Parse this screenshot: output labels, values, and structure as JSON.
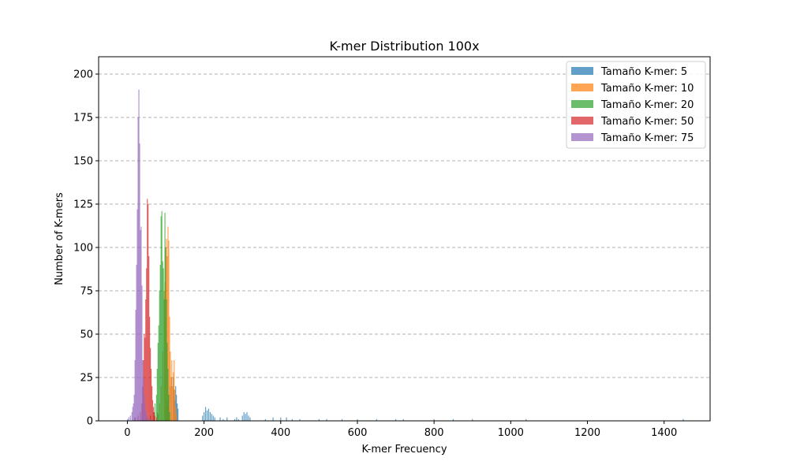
{
  "chart_data": {
    "type": "bar",
    "title": "K-mer Distribution 100x",
    "xlabel": "K-mer Frecuency",
    "ylabel": "Number of K-mers",
    "xlim": [
      -75,
      1520
    ],
    "ylim": [
      0,
      210
    ],
    "xticks": [
      0,
      200,
      400,
      600,
      800,
      1000,
      1200,
      1400
    ],
    "yticks": [
      0,
      25,
      50,
      75,
      100,
      125,
      150,
      175,
      200
    ],
    "grid": "y-dashed",
    "legend_position": "top-right",
    "series": [
      {
        "name": "Tamaño K-mer: 5",
        "color": "#1f77b4",
        "bars": [
          [
            1,
            1
          ],
          [
            19,
            2
          ],
          [
            40,
            2
          ],
          [
            60,
            3
          ],
          [
            80,
            4
          ],
          [
            100,
            8
          ],
          [
            104,
            12
          ],
          [
            108,
            15
          ],
          [
            112,
            20
          ],
          [
            116,
            25
          ],
          [
            120,
            25
          ],
          [
            122,
            18
          ],
          [
            124,
            12
          ],
          [
            126,
            20
          ],
          [
            128,
            15
          ],
          [
            130,
            10
          ],
          [
            132,
            7
          ],
          [
            196,
            3
          ],
          [
            200,
            5
          ],
          [
            204,
            8
          ],
          [
            208,
            6
          ],
          [
            212,
            7
          ],
          [
            216,
            5
          ],
          [
            220,
            4
          ],
          [
            224,
            3
          ],
          [
            228,
            2
          ],
          [
            242,
            2
          ],
          [
            250,
            1
          ],
          [
            260,
            2
          ],
          [
            280,
            1
          ],
          [
            285,
            2
          ],
          [
            290,
            1
          ],
          [
            300,
            3
          ],
          [
            304,
            5
          ],
          [
            308,
            4
          ],
          [
            312,
            5
          ],
          [
            316,
            3
          ],
          [
            320,
            2
          ],
          [
            360,
            1
          ],
          [
            380,
            2
          ],
          [
            400,
            2
          ],
          [
            415,
            2
          ],
          [
            430,
            1
          ],
          [
            450,
            1
          ],
          [
            500,
            1
          ],
          [
            520,
            1
          ],
          [
            560,
            1
          ],
          [
            600,
            1
          ],
          [
            650,
            1
          ],
          [
            700,
            1
          ],
          [
            720,
            1
          ],
          [
            800,
            1
          ],
          [
            850,
            1
          ],
          [
            900,
            1
          ],
          [
            1040,
            1
          ],
          [
            1450,
            1
          ]
        ]
      },
      {
        "name": "Tamaño K-mer: 10",
        "color": "#ff7f0e",
        "bars": [
          [
            60,
            2
          ],
          [
            70,
            3
          ],
          [
            78,
            5
          ],
          [
            84,
            10
          ],
          [
            88,
            20
          ],
          [
            92,
            40
          ],
          [
            96,
            75
          ],
          [
            98,
            80
          ],
          [
            100,
            100
          ],
          [
            102,
            105
          ],
          [
            104,
            95
          ],
          [
            106,
            112
          ],
          [
            108,
            104
          ],
          [
            110,
            60
          ],
          [
            112,
            40
          ],
          [
            114,
            25
          ],
          [
            116,
            35
          ],
          [
            118,
            20
          ],
          [
            120,
            28
          ],
          [
            122,
            35
          ],
          [
            124,
            18
          ],
          [
            126,
            8
          ],
          [
            128,
            4
          ]
        ]
      },
      {
        "name": "Tamaño K-mer: 20",
        "color": "#2ca02c",
        "bars": [
          [
            50,
            2
          ],
          [
            60,
            3
          ],
          [
            68,
            5
          ],
          [
            72,
            10
          ],
          [
            76,
            15
          ],
          [
            78,
            30
          ],
          [
            80,
            45
          ],
          [
            82,
            55
          ],
          [
            84,
            75
          ],
          [
            86,
            90
          ],
          [
            88,
            118
          ],
          [
            90,
            121
          ],
          [
            92,
            92
          ],
          [
            94,
            88
          ],
          [
            96,
            70
          ],
          [
            98,
            120
          ],
          [
            100,
            100
          ],
          [
            102,
            70
          ],
          [
            104,
            45
          ],
          [
            106,
            30
          ],
          [
            108,
            15
          ],
          [
            110,
            5
          ]
        ]
      },
      {
        "name": "Tamaño K-mer: 50",
        "color": "#d62728",
        "bars": [
          [
            20,
            2
          ],
          [
            28,
            3
          ],
          [
            34,
            5
          ],
          [
            38,
            10
          ],
          [
            40,
            20
          ],
          [
            42,
            35
          ],
          [
            44,
            50
          ],
          [
            46,
            48
          ],
          [
            48,
            70
          ],
          [
            50,
            88
          ],
          [
            52,
            128
          ],
          [
            54,
            125
          ],
          [
            56,
            95
          ],
          [
            58,
            60
          ],
          [
            60,
            42
          ],
          [
            62,
            30
          ],
          [
            64,
            20
          ],
          [
            66,
            12
          ],
          [
            68,
            8
          ],
          [
            70,
            5
          ],
          [
            72,
            3
          ],
          [
            76,
            2
          ]
        ]
      },
      {
        "name": "Tamaño K-mer: 75",
        "color": "#9467bd",
        "bars": [
          [
            4,
            2
          ],
          [
            8,
            3
          ],
          [
            12,
            5
          ],
          [
            14,
            8
          ],
          [
            16,
            10
          ],
          [
            18,
            15
          ],
          [
            20,
            35
          ],
          [
            22,
            64
          ],
          [
            24,
            90
          ],
          [
            26,
            122
          ],
          [
            28,
            175
          ],
          [
            30,
            191
          ],
          [
            32,
            160
          ],
          [
            34,
            110
          ],
          [
            36,
            112
          ],
          [
            38,
            78
          ],
          [
            40,
            35
          ],
          [
            42,
            25
          ],
          [
            44,
            15
          ],
          [
            46,
            10
          ],
          [
            48,
            6
          ],
          [
            50,
            4
          ],
          [
            54,
            2
          ],
          [
            60,
            1
          ]
        ]
      }
    ]
  }
}
